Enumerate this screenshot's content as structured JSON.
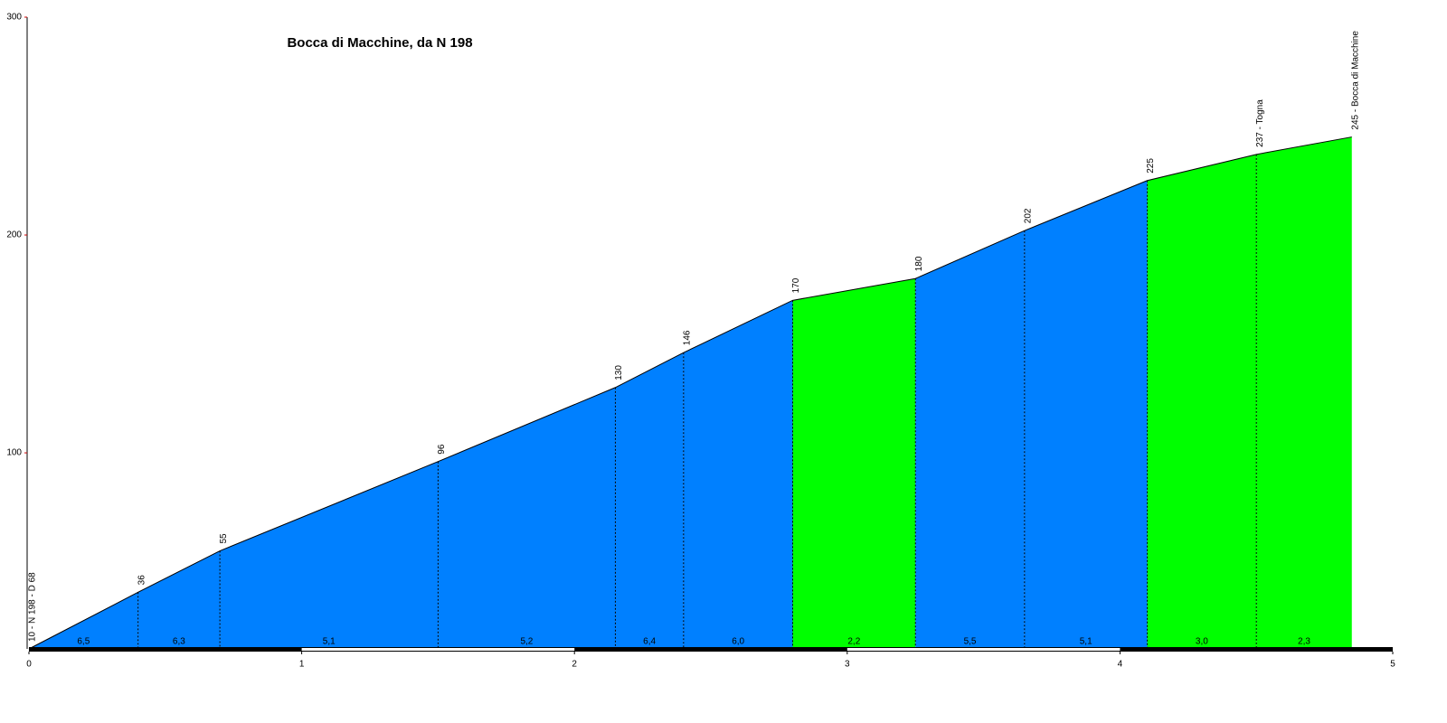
{
  "chart_data": {
    "type": "area",
    "title": "Bocca di Macchine, da N 198",
    "x": [
      0,
      0.4,
      0.7,
      1.5,
      2.15,
      2.4,
      2.8,
      3.25,
      3.65,
      4.1,
      4.5,
      4.85
    ],
    "values": [
      10,
      36,
      55,
      96,
      130,
      146,
      170,
      180,
      202,
      225,
      237,
      245
    ],
    "value_labels": [
      "10 - N 198 - D 68",
      "36",
      "55",
      "96",
      "130",
      "146",
      "170",
      "180",
      "202",
      "225",
      "237 - Togna",
      "245 - Bocca di Macchine"
    ],
    "gradient_labels": [
      "6,5",
      "6,3",
      "5,1",
      "5,2",
      "6,4",
      "6,0",
      "2,2",
      "5,5",
      "5,1",
      "3,0",
      "2,3"
    ],
    "segment_colors": [
      "#0080ff",
      "#0080ff",
      "#0080ff",
      "#0080ff",
      "#0080ff",
      "#0080ff",
      "#00ff00",
      "#0080ff",
      "#0080ff",
      "#00ff00",
      "#00ff00"
    ],
    "xlim": [
      0,
      5
    ],
    "xticks": [
      0,
      1,
      2,
      3,
      4,
      5
    ],
    "ylim": [
      10,
      300
    ],
    "yticks": [
      100,
      200,
      300
    ]
  }
}
